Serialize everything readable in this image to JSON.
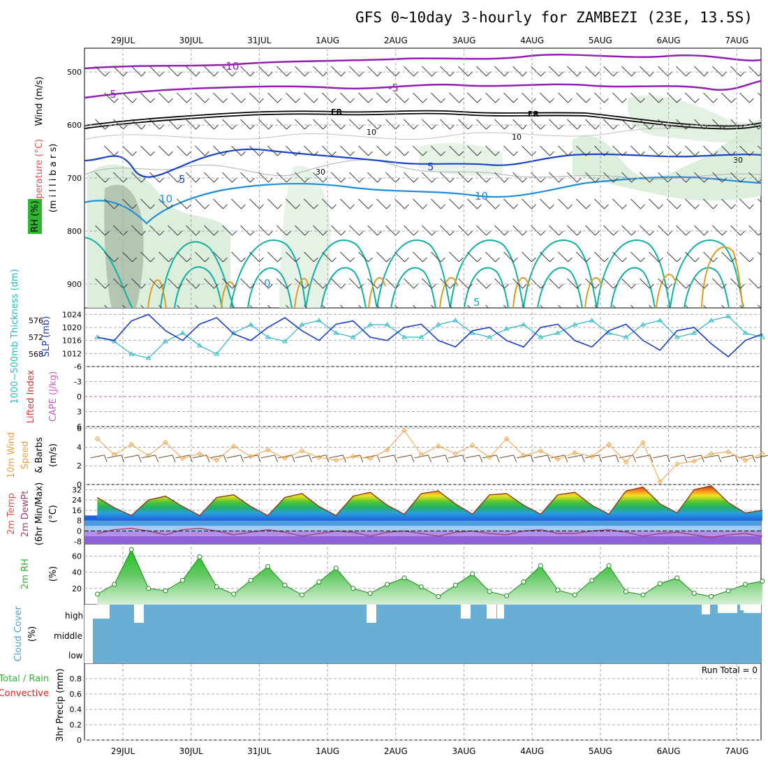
{
  "title": "GFS 0~10day 3-hourly for ZAMBEZI (23E, 13.5S)",
  "dates": [
    "29JUL",
    "30JUL",
    "31JUL",
    "1AUG",
    "2AUG",
    "3AUG",
    "4AUG",
    "5AUG",
    "6AUG",
    "7AUG"
  ],
  "panels": {
    "upper": {
      "label_wind": "Wind (m/s)",
      "label_temp": "Temperature (°C)",
      "label_rh": "RH (%)",
      "label_millibars": "(m i l l i b a r s)",
      "pressure_ticks": [
        "500",
        "600",
        "700",
        "800",
        "900"
      ],
      "contour_labels": {
        "t_minus10": "-10",
        "t_minus5a": "-5",
        "t_minus5b": "-5",
        "freezing1": "FR",
        "freezing2": "FR",
        "t5a": "5",
        "t5b": "5",
        "t10a": "10",
        "t10b": "10",
        "t0a": "0",
        "t5c": "5",
        "rh30a": "30",
        "rh30b": "30",
        "rh10a": "10",
        "rh10b": "10"
      }
    },
    "slp": {
      "label_thickness": "1000~500mb Thickness (dm)",
      "label_slp": "SLP (mb)",
      "left_ticks": [
        "576",
        "572",
        "568"
      ],
      "right_ticks": [
        "1024",
        "1020",
        "1016",
        "1012"
      ]
    },
    "cape": {
      "label_li": "Lifted Index",
      "label_cape": "CAPE (J/kg)",
      "ticks": [
        "-6",
        "-3",
        "0",
        "3",
        "6"
      ]
    },
    "wind10m": {
      "label_a": "10m Wind",
      "label_b": "Speed",
      "label_c": "& Barbs",
      "label_d": "(m/s)",
      "ticks": [
        "6",
        "4",
        "2",
        "0"
      ]
    },
    "temp2m": {
      "label_a": "2m Temp",
      "label_b": "2m DewPt",
      "label_c": "(6hr Min/Max)",
      "label_d": "(°C)",
      "ticks": [
        "32",
        "24",
        "16",
        "8",
        "0",
        "-8"
      ]
    },
    "rh2m": {
      "label_a": "2m RH",
      "label_b": "(%)",
      "ticks": [
        "60",
        "40",
        "20"
      ]
    },
    "cloud": {
      "label_a": "Cloud Cover",
      "label_b": "(%)",
      "levels": [
        "high",
        "middle",
        "low"
      ]
    },
    "precip": {
      "label_a": "Total / Rain",
      "label_b": "Convective",
      "label_c": "3hr Precip (mm)",
      "run_total": "Run Total = 0",
      "ticks": [
        "0.8",
        "0.6",
        "0.4",
        "0.2",
        "0"
      ]
    }
  },
  "colors": {
    "temp_cold": "#9020b0",
    "freezing": "#000000",
    "temp_blue": "#1a44c8",
    "temp_lightblue": "#1e8ed8",
    "temp_teal": "#10b0a0",
    "temp_orange": "#e09a20",
    "slp_line": "#1a3cc8",
    "thickness_line": "#28b8c0",
    "wind_speed": "#f0a040",
    "wind_barb": "#6b4c2a",
    "dewpoint": "#a04070",
    "rh_fill": "#2fb52f",
    "cloud_fill": "#6aaed6",
    "precip_total": "#2fb52f",
    "precip_conv": "#e02020",
    "li_line": "#e06060"
  },
  "chart_data": [
    {
      "type": "line",
      "name": "SLP (mb)",
      "ylim": [
        1008,
        1026
      ],
      "x_hours": [
        0,
        6,
        12,
        18,
        24,
        30,
        36,
        42,
        48,
        54,
        60,
        66,
        72,
        78,
        84,
        90,
        96,
        102,
        108,
        114,
        120,
        126,
        132,
        138,
        144,
        150,
        156,
        162,
        168,
        174,
        180,
        186,
        192,
        198,
        204,
        210,
        216,
        222,
        228,
        234
      ],
      "values": [
        1017,
        1016,
        1022,
        1024,
        1019,
        1016,
        1021,
        1023,
        1018,
        1016,
        1020,
        1023,
        1019,
        1016,
        1021,
        1022,
        1017,
        1016,
        1020,
        1021,
        1016,
        1014,
        1019,
        1020,
        1016,
        1014,
        1020,
        1021,
        1016,
        1014,
        1019,
        1021,
        1016,
        1013,
        1019,
        1020,
        1015,
        1011,
        1016,
        1018
      ]
    },
    {
      "type": "line",
      "name": "1000~500mb Thickness (dm)",
      "ylim": [
        565,
        579
      ],
      "x_hours": [
        0,
        6,
        12,
        18,
        24,
        30,
        36,
        42,
        48,
        54,
        60,
        66,
        72,
        78,
        84,
        90,
        96,
        102,
        108,
        114,
        120,
        126,
        132,
        138,
        144,
        150,
        156,
        162,
        168,
        174,
        180,
        186,
        192,
        198,
        204,
        210,
        216,
        222,
        228,
        234
      ],
      "values": [
        572,
        571,
        568,
        567,
        571,
        573,
        570,
        568,
        573,
        575,
        572,
        571,
        575,
        576,
        573,
        572,
        575,
        575,
        572,
        572,
        575,
        576,
        573,
        572,
        574,
        575,
        572,
        573,
        575,
        576,
        573,
        572,
        575,
        576,
        572,
        573,
        576,
        577,
        573,
        572
      ]
    },
    {
      "type": "line",
      "name": "Lifted Index",
      "ylim": [
        -6,
        6
      ],
      "values": [
        0
      ]
    },
    {
      "type": "line",
      "name": "10m Wind Speed (m/s)",
      "ylim": [
        0,
        6
      ],
      "x_hours": [
        0,
        6,
        12,
        18,
        24,
        30,
        36,
        42,
        48,
        54,
        60,
        66,
        72,
        78,
        84,
        90,
        96,
        102,
        108,
        114,
        120,
        126,
        132,
        138,
        144,
        150,
        156,
        162,
        168,
        174,
        180,
        186,
        192,
        198,
        204,
        210,
        216,
        222,
        228,
        234
      ],
      "values": [
        4.9,
        3.2,
        4.3,
        3.1,
        4.5,
        2.8,
        3.3,
        2.6,
        4.1,
        3.0,
        3.7,
        2.8,
        3.6,
        2.9,
        2.6,
        3.0,
        2.8,
        3.7,
        5.8,
        3.2,
        4.1,
        3.3,
        4.2,
        2.9,
        4.9,
        3.1,
        3.6,
        2.7,
        3.4,
        3.0,
        4.3,
        2.4,
        4.5,
        0.3,
        2.2,
        2.5,
        3.3,
        3.5,
        2.6,
        3.3
      ]
    },
    {
      "type": "area",
      "name": "2m Temp (°C)",
      "ylim": [
        -10,
        36
      ],
      "x_hours": [
        0,
        6,
        12,
        18,
        24,
        30,
        36,
        42,
        48,
        54,
        60,
        66,
        72,
        78,
        84,
        90,
        96,
        102,
        108,
        114,
        120,
        126,
        132,
        138,
        144,
        150,
        156,
        162,
        168,
        174,
        180,
        186,
        192,
        198,
        204,
        210,
        216,
        222,
        228,
        234
      ],
      "values": [
        26,
        18,
        12,
        24,
        27,
        19,
        12,
        26,
        28,
        19,
        12,
        26,
        29,
        19,
        12,
        27,
        30,
        20,
        13,
        29,
        31,
        21,
        13,
        28,
        29,
        20,
        13,
        28,
        30,
        20,
        13,
        31,
        34,
        21,
        14,
        32,
        35,
        22,
        14,
        16
      ]
    },
    {
      "type": "line",
      "name": "2m DewPt (°C)",
      "ylim": [
        -10,
        36
      ],
      "x_hours": [
        0,
        6,
        12,
        18,
        24,
        30,
        36,
        42,
        48,
        54,
        60,
        66,
        72,
        78,
        84,
        90,
        96,
        102,
        108,
        114,
        120,
        126,
        132,
        138,
        144,
        150,
        156,
        162,
        168,
        174,
        180,
        186,
        192,
        198,
        204,
        210,
        216,
        222,
        228,
        234
      ],
      "values": [
        -2,
        1,
        2,
        0,
        -3,
        1,
        2,
        0,
        -3,
        -1,
        1,
        -1,
        -4,
        -2,
        0,
        -1,
        -4,
        -1,
        0,
        -2,
        -4,
        -1,
        0,
        -2,
        -3,
        0,
        1,
        -2,
        -2,
        0,
        1,
        -1,
        -4,
        -2,
        -1,
        -3,
        -5,
        -3,
        -2,
        -4
      ]
    },
    {
      "type": "area",
      "name": "2m RH (%)",
      "ylim": [
        0,
        75
      ],
      "x_hours": [
        0,
        6,
        12,
        18,
        24,
        30,
        36,
        42,
        48,
        54,
        60,
        66,
        72,
        78,
        84,
        90,
        96,
        102,
        108,
        114,
        120,
        126,
        132,
        138,
        144,
        150,
        156,
        162,
        168,
        174,
        180,
        186,
        192,
        198,
        204,
        210,
        216,
        222,
        228,
        234
      ],
      "values": [
        13,
        25,
        68,
        20,
        17,
        30,
        59,
        22,
        13,
        30,
        47,
        24,
        12,
        28,
        45,
        20,
        14,
        25,
        33,
        22,
        10,
        24,
        38,
        16,
        11,
        28,
        48,
        18,
        12,
        30,
        48,
        16,
        12,
        26,
        33,
        14,
        10,
        17,
        25,
        29
      ]
    },
    {
      "type": "bar",
      "name": "Cloud Cover high (%)",
      "categories": [
        "29JUL",
        "30JUL",
        "31JUL",
        "1AUG",
        "2AUG",
        "3AUG",
        "4AUG",
        "5AUG",
        "6AUG",
        "7AUG"
      ],
      "values": [
        95,
        100,
        100,
        100,
        100,
        92,
        100,
        100,
        100,
        92
      ]
    },
    {
      "type": "bar",
      "name": "3hr Precip (mm)",
      "ylim": [
        0,
        1
      ],
      "values": [
        0
      ]
    }
  ]
}
